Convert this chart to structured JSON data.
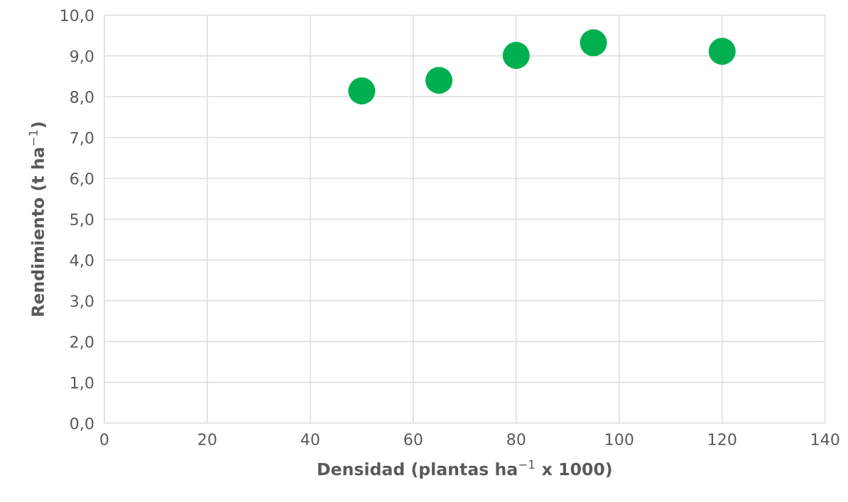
{
  "chart_data": {
    "type": "scatter",
    "xlabel": "Densidad (plantas ha$^{−1}$ x 1000)",
    "ylabel": "Rendimiento (t ha$^{−1}$)",
    "x": [
      50,
      65,
      80,
      95,
      120
    ],
    "series": [
      {
        "color": "#00b050",
        "values": [
          8.14,
          8.4,
          9.01,
          9.32,
          9.11
        ]
      }
    ],
    "xlim": [
      0,
      140
    ],
    "xticks": [
      0,
      20,
      40,
      60,
      80,
      100,
      120,
      140
    ],
    "ylim": [
      0,
      10
    ],
    "yticks": [
      {
        "value": 0,
        "label": "0,0"
      },
      {
        "value": 1,
        "label": "1,0"
      },
      {
        "value": 2,
        "label": "2,0"
      },
      {
        "value": 3,
        "label": "3,0"
      },
      {
        "value": 4,
        "label": "4,0"
      },
      {
        "value": 5,
        "label": "5,0"
      },
      {
        "value": 6,
        "label": "6,0"
      },
      {
        "value": 7,
        "label": "7,0"
      },
      {
        "value": 8,
        "label": "8,0"
      },
      {
        "value": 9,
        "label": "9,0"
      },
      {
        "value": 10,
        "label": "10,0"
      }
    ],
    "grid": true,
    "marker": "circle"
  }
}
